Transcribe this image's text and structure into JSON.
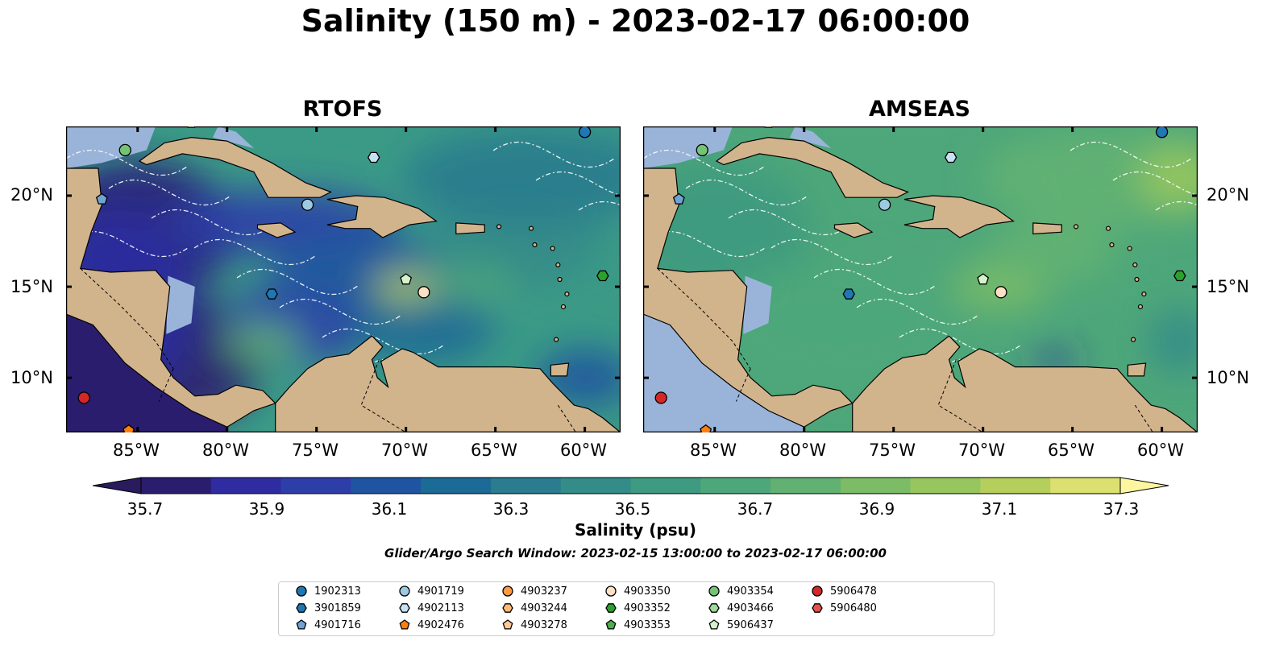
{
  "title": "Salinity (150 m) - 2023-02-17 06:00:00",
  "panels": [
    {
      "title": "RTOFS",
      "theme": "rtofs"
    },
    {
      "title": "AMSEAS",
      "theme": "amseas"
    }
  ],
  "axes": {
    "x_ticks": [
      "85°W",
      "80°W",
      "75°W",
      "70°W",
      "65°W",
      "60°W"
    ],
    "y_ticks": [
      "20°N",
      "15°N",
      "10°N"
    ]
  },
  "colorbar": {
    "label": "Salinity (psu)",
    "tick_labels": [
      "35.7",
      "35.9",
      "36.1",
      "36.3",
      "36.5",
      "36.7",
      "36.9",
      "37.1",
      "37.3"
    ],
    "colors": [
      "#2b1d6e",
      "#2e2ca0",
      "#2e3ea8",
      "#1f55a0",
      "#1c6a96",
      "#2a7c8e",
      "#338c88",
      "#3e9a80",
      "#4ea77a",
      "#62b172",
      "#7cbc66",
      "#98c65e",
      "#b6cf5c",
      "#dbe070"
    ],
    "extend_low_color": "#2a1a5e",
    "extend_high_color": "#fdf5a0"
  },
  "search_window": "Glider/Argo Search Window: 2023-02-15 13:00:00 to 2023-02-17 06:00:00",
  "legend": {
    "items": [
      {
        "label": "1902313",
        "shape": "circle",
        "color": "#1f77b4"
      },
      {
        "label": "3901859",
        "shape": "hexagon",
        "color": "#1f77b4"
      },
      {
        "label": "4901716",
        "shape": "pentagon",
        "color": "#6fa3d6"
      },
      {
        "label": "4901719",
        "shape": "circle",
        "color": "#9ecae1"
      },
      {
        "label": "4902113",
        "shape": "hexagon",
        "color": "#c6e2f5"
      },
      {
        "label": "4902476",
        "shape": "pentagon",
        "color": "#ff7f0e"
      },
      {
        "label": "4903237",
        "shape": "circle",
        "color": "#fd9a44"
      },
      {
        "label": "4903244",
        "shape": "hexagon",
        "color": "#fdb977"
      },
      {
        "label": "4903278",
        "shape": "pentagon",
        "color": "#fdc995"
      },
      {
        "label": "4903350",
        "shape": "circle",
        "color": "#fde0c5"
      },
      {
        "label": "4903352",
        "shape": "hexagon",
        "color": "#2ca02c"
      },
      {
        "label": "4903353",
        "shape": "pentagon",
        "color": "#4daf4a"
      },
      {
        "label": "4903354",
        "shape": "circle",
        "color": "#74c476"
      },
      {
        "label": "4903466",
        "shape": "hexagon",
        "color": "#a1d99b"
      },
      {
        "label": "5906437",
        "shape": "pentagon",
        "color": "#d4f2cc"
      },
      {
        "label": "5906478",
        "shape": "circle",
        "color": "#d62728"
      },
      {
        "label": "5906480",
        "shape": "hexagon",
        "color": "#e8504a"
      }
    ]
  },
  "markers": [
    {
      "id": "1902313",
      "lon": -60.0,
      "lat": 23.5
    },
    {
      "id": "4903354",
      "lon": -85.7,
      "lat": 22.5
    },
    {
      "id": "4902113",
      "lon": -71.8,
      "lat": 22.1
    },
    {
      "id": "4901716",
      "lon": -87.0,
      "lat": 19.8
    },
    {
      "id": "4901719",
      "lon": -75.5,
      "lat": 19.5
    },
    {
      "id": "3901859",
      "lon": -77.5,
      "lat": 14.6
    },
    {
      "id": "5906437",
      "lon": -70.0,
      "lat": 15.4
    },
    {
      "id": "4903350",
      "lon": -69.0,
      "lat": 14.7
    },
    {
      "id": "4903352",
      "lon": -59.0,
      "lat": 15.6
    },
    {
      "id": "5906478",
      "lon": -88.0,
      "lat": 8.9
    },
    {
      "id": "4902476",
      "lon": -85.5,
      "lat": 7.1
    },
    {
      "id": "4903278",
      "lon": -82.0,
      "lat": 24.0
    }
  ]
}
